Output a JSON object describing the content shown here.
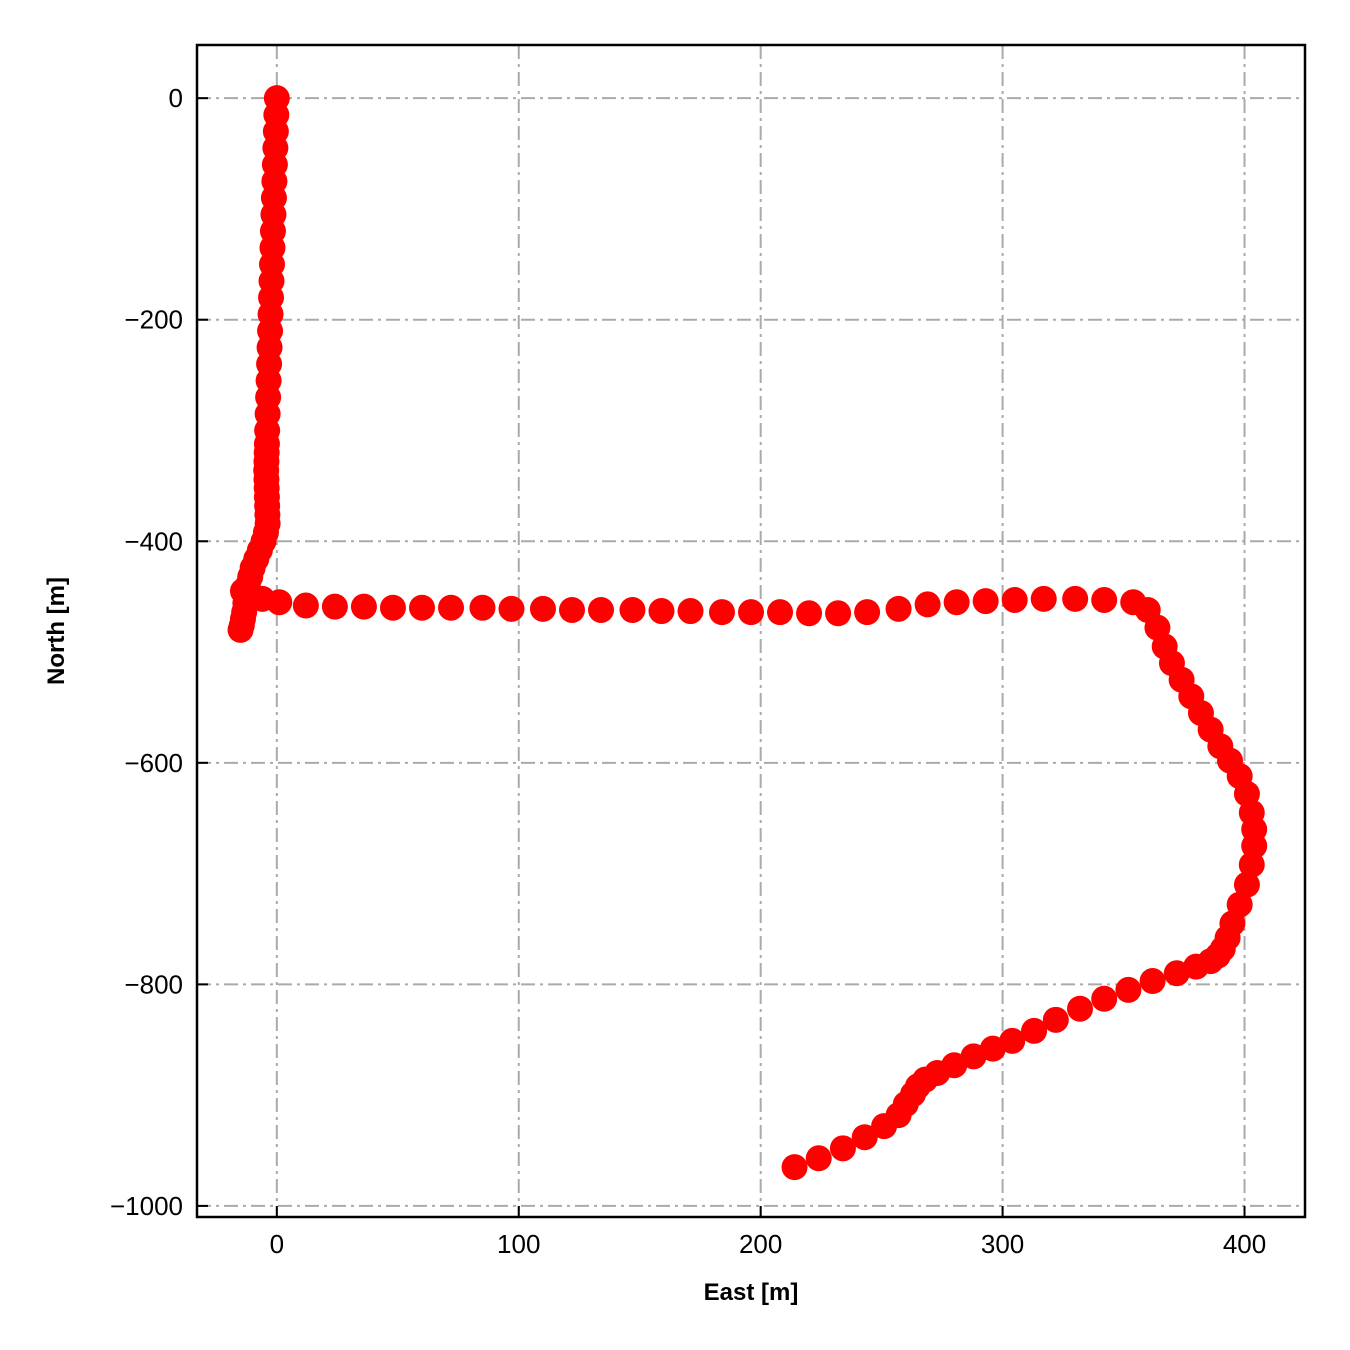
{
  "chart_data": {
    "type": "scatter",
    "xlabel": "East [m]",
    "ylabel": "North [m]",
    "xlim": [
      -33,
      425
    ],
    "ylim": [
      -1010,
      48
    ],
    "xticks": [
      0,
      100,
      200,
      300,
      400
    ],
    "yticks": [
      0,
      -200,
      -400,
      -600,
      -800,
      -1000
    ],
    "xtick_labels": [
      "0",
      "100",
      "200",
      "300",
      "400"
    ],
    "ytick_labels": [
      "0",
      "−200",
      "−400",
      "−600",
      "−800",
      "−1000"
    ],
    "grid": true,
    "marker_color": "#ff0000",
    "series": [
      {
        "x": [
          0,
          -0.2,
          -0.4,
          -0.6,
          -0.8,
          -1.0,
          -1.2,
          -1.4,
          -1.6,
          -1.8,
          -2.0,
          -2.2,
          -2.4,
          -2.6,
          -2.8,
          -3.0,
          -3.2,
          -3.4,
          -3.6,
          -3.8,
          -4.0,
          -4.1,
          -4.2,
          -4.3,
          -4.4,
          -4.3,
          -4.2,
          -4.1,
          -4.0,
          -3.9,
          -3.8,
          -4.5,
          -5.5,
          -7.0,
          -8.5,
          -10.0,
          -11.0,
          -12.0,
          -12.5,
          -13.0,
          -13.5,
          -14.0,
          -14.5,
          -15.0,
          -14.0,
          -11.0,
          -6.0,
          1.0,
          12.0,
          24.0,
          36.0,
          48.0,
          60.0,
          72.0,
          85.0,
          97.0,
          110.0,
          122.0,
          134.0,
          147.0,
          159.0,
          171.0,
          184.0,
          196.0,
          208.0,
          220.0,
          232.0,
          244.0,
          257.0,
          269.0,
          281.0,
          293.0,
          305.0,
          317.0,
          330.0,
          342.0,
          354.0,
          360.0,
          364.0,
          367.0,
          370.0,
          374.0,
          378.0,
          382.0,
          386.0,
          390.0,
          394.0,
          398.0,
          401.0,
          403.0,
          404.0,
          404.0,
          403.0,
          401.0,
          398.0,
          395.0,
          393.0,
          391.0,
          389.0,
          386.0,
          380.0,
          372.0,
          362.0,
          352.0,
          342.0,
          332.0,
          322.0,
          313.0,
          304.0,
          296.0,
          288.0,
          280.0,
          273.0,
          268.0,
          265.0,
          263.0,
          260.0,
          257.0,
          251.0,
          243.0,
          234.0,
          224.0,
          214.0
        ],
        "y": [
          0,
          -15,
          -30,
          -45,
          -60,
          -75,
          -90,
          -105,
          -120,
          -135,
          -150,
          -165,
          -180,
          -195,
          -210,
          -225,
          -240,
          -255,
          -270,
          -285,
          -300,
          -312,
          -320,
          -328,
          -336,
          -344,
          -352,
          -360,
          -368,
          -376,
          -384,
          -392,
          -400,
          -408,
          -416,
          -424,
          -432,
          -440,
          -448,
          -456,
          -464,
          -470,
          -476,
          -480,
          -445,
          -449,
          -452,
          -455,
          -458,
          -459,
          -459,
          -460,
          -460,
          -460,
          -460,
          -461,
          -461,
          -462,
          -462,
          -462,
          -463,
          -463,
          -464,
          -464,
          -464,
          -465,
          -465,
          -464,
          -461,
          -457,
          -455,
          -454,
          -453,
          -452,
          -452,
          -453,
          -455,
          -462,
          -478,
          -495,
          -510,
          -525,
          -540,
          -555,
          -570,
          -585,
          -598,
          -612,
          -628,
          -645,
          -660,
          -675,
          -692,
          -710,
          -728,
          -745,
          -758,
          -768,
          -774,
          -779,
          -784,
          -790,
          -797,
          -805,
          -813,
          -822,
          -832,
          -842,
          -851,
          -858,
          -865,
          -873,
          -880,
          -886,
          -892,
          -899,
          -908,
          -918,
          -928,
          -938,
          -948,
          -957,
          -965
        ]
      }
    ]
  }
}
